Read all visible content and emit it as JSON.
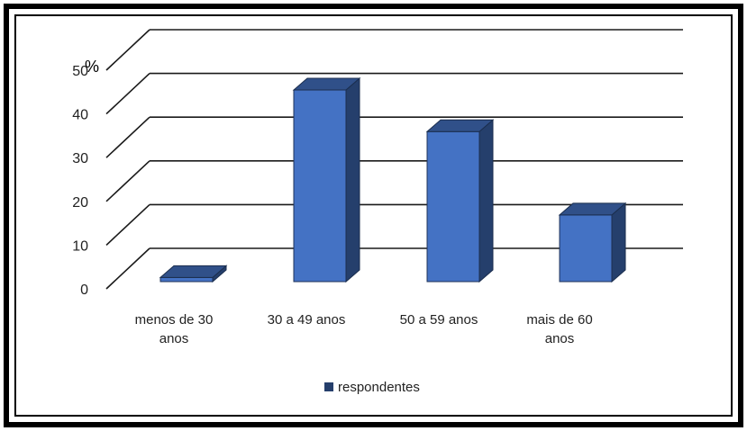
{
  "chart_data": {
    "type": "bar",
    "style": "3d-column",
    "categories": [
      [
        "menos de 30",
        "anos"
      ],
      [
        "30 a 49 anos"
      ],
      [
        "50 a 59 anos"
      ],
      [
        "mais de 60",
        "anos"
      ]
    ],
    "series": [
      {
        "name": "respondentes",
        "values": [
          1,
          46,
          36,
          16
        ],
        "color": "#4472c4"
      }
    ],
    "y_unit": "%",
    "ylim": [
      0,
      50
    ],
    "y_ticks": [
      "0",
      "10",
      "20",
      "30",
      "40",
      "50"
    ],
    "grid": true,
    "legend": "bottom"
  }
}
